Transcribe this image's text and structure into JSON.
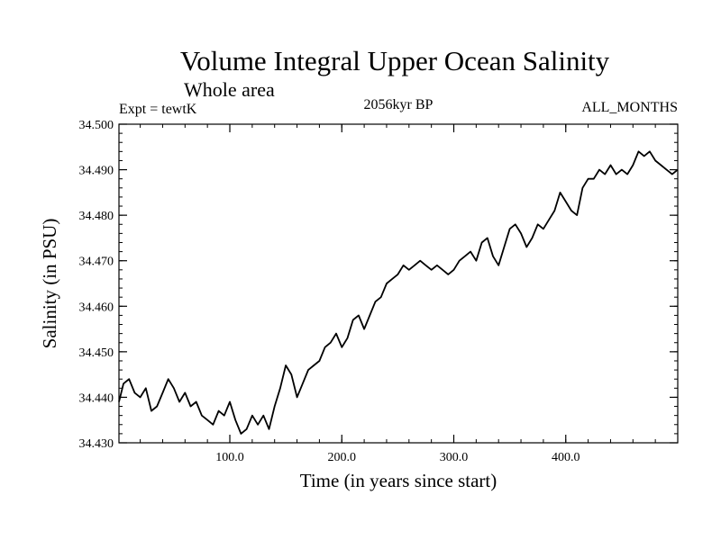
{
  "chart_data": {
    "type": "line",
    "title": "Volume Integral Upper Ocean Salinity",
    "subtitle": "Whole area",
    "experiment": "Expt = tewtK",
    "period": "2056kyr BP",
    "months": "ALL_MONTHS",
    "xlabel": "Time (in years since start)",
    "ylabel": "Salinity (in PSU)",
    "xlim": [
      1,
      500
    ],
    "ylim": [
      34.43,
      34.5
    ],
    "x_ticks": [
      100,
      200,
      300,
      400
    ],
    "x_tick_labels": [
      "100.0",
      "200.0",
      "300.0",
      "400.0"
    ],
    "y_ticks": [
      34.43,
      34.44,
      34.45,
      34.46,
      34.47,
      34.48,
      34.49,
      34.5
    ],
    "y_tick_labels": [
      "34.430",
      "34.440",
      "34.450",
      "34.460",
      "34.470",
      "34.480",
      "34.490",
      "34.500"
    ],
    "grid": false,
    "series": [
      {
        "name": "Salinity",
        "color": "#000000",
        "x": [
          1,
          5,
          10,
          15,
          20,
          25,
          30,
          35,
          40,
          45,
          50,
          55,
          60,
          65,
          70,
          75,
          80,
          85,
          90,
          95,
          100,
          105,
          110,
          115,
          120,
          125,
          130,
          135,
          140,
          145,
          150,
          155,
          160,
          165,
          170,
          175,
          180,
          185,
          190,
          195,
          200,
          205,
          210,
          215,
          220,
          225,
          230,
          235,
          240,
          245,
          250,
          255,
          260,
          265,
          270,
          275,
          280,
          285,
          290,
          295,
          300,
          305,
          310,
          315,
          320,
          325,
          330,
          335,
          340,
          345,
          350,
          355,
          360,
          365,
          370,
          375,
          380,
          385,
          390,
          395,
          400,
          405,
          410,
          415,
          420,
          425,
          430,
          435,
          440,
          445,
          450,
          455,
          460,
          465,
          470,
          475,
          480,
          485,
          490,
          495,
          500
        ],
        "values": [
          34.439,
          34.443,
          34.444,
          34.441,
          34.44,
          34.442,
          34.437,
          34.438,
          34.441,
          34.444,
          34.442,
          34.439,
          34.441,
          34.438,
          34.439,
          34.436,
          34.435,
          34.434,
          34.437,
          34.436,
          34.439,
          34.435,
          34.432,
          34.433,
          34.436,
          34.434,
          34.436,
          34.433,
          34.438,
          34.442,
          34.447,
          34.445,
          34.44,
          34.443,
          34.446,
          34.447,
          34.448,
          34.451,
          34.452,
          34.454,
          34.451,
          34.453,
          34.457,
          34.458,
          34.455,
          34.458,
          34.461,
          34.462,
          34.465,
          34.466,
          34.467,
          34.469,
          34.468,
          34.469,
          34.47,
          34.469,
          34.468,
          34.469,
          34.468,
          34.467,
          34.468,
          34.47,
          34.471,
          34.472,
          34.47,
          34.474,
          34.475,
          34.471,
          34.469,
          34.473,
          34.477,
          34.478,
          34.476,
          34.473,
          34.475,
          34.478,
          34.477,
          34.479,
          34.481,
          34.485,
          34.483,
          34.481,
          34.48,
          34.486,
          34.488,
          34.488,
          34.49,
          34.489,
          34.491,
          34.489,
          34.49,
          34.489,
          34.491,
          34.494,
          34.493,
          34.494,
          34.492,
          34.491,
          34.49,
          34.489,
          34.49
        ]
      }
    ]
  }
}
